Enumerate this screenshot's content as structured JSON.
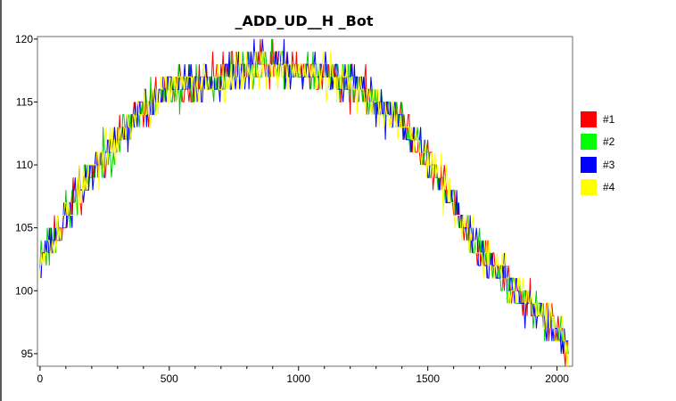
{
  "chart_data": {
    "type": "line",
    "title": "_ADD_UD__H _Bot",
    "xlabel": "",
    "ylabel": "",
    "xlim": [
      -10,
      2060
    ],
    "ylim": [
      94,
      120.2
    ],
    "x_ticks": [
      0,
      500,
      1000,
      1500,
      2000
    ],
    "x_tick_labels": [
      "0",
      "500",
      "1000",
      "1500",
      "2000"
    ],
    "x_minor_step": 100,
    "y_ticks": [
      95,
      100,
      105,
      110,
      115,
      120
    ],
    "y_tick_labels": [
      "95",
      "100",
      "105",
      "110",
      "115",
      "120"
    ],
    "grid": false,
    "legend_position": "right",
    "trend": {
      "x": [
        0,
        50,
        100,
        200,
        300,
        400,
        500,
        600,
        700,
        800,
        900,
        1000,
        1100,
        1200,
        1300,
        1400,
        1500,
        1600,
        1700,
        1800,
        1900,
        2000,
        2050
      ],
      "y": [
        103,
        104,
        106,
        109.5,
        112,
        114.5,
        116,
        116.5,
        117,
        117.5,
        118,
        117.5,
        117,
        116.5,
        115,
        113.5,
        110.5,
        107,
        103,
        101,
        99,
        97,
        95
      ]
    },
    "x_start": 0,
    "x_end": 2047,
    "series": [
      {
        "name": "#1",
        "color": "#ff0000",
        "seed": 11
      },
      {
        "name": "#2",
        "color": "#00cc00",
        "seed": 23
      },
      {
        "name": "#3",
        "color": "#0000ff",
        "seed": 37
      },
      {
        "name": "#4",
        "color": "#ffff00",
        "seed": 53
      }
    ],
    "legend": [
      {
        "label": "#1",
        "color": "#ff0000"
      },
      {
        "label": "#2",
        "color": "#00ff00"
      },
      {
        "label": "#3",
        "color": "#0000ff"
      },
      {
        "label": "#4",
        "color": "#ffff00"
      }
    ]
  }
}
